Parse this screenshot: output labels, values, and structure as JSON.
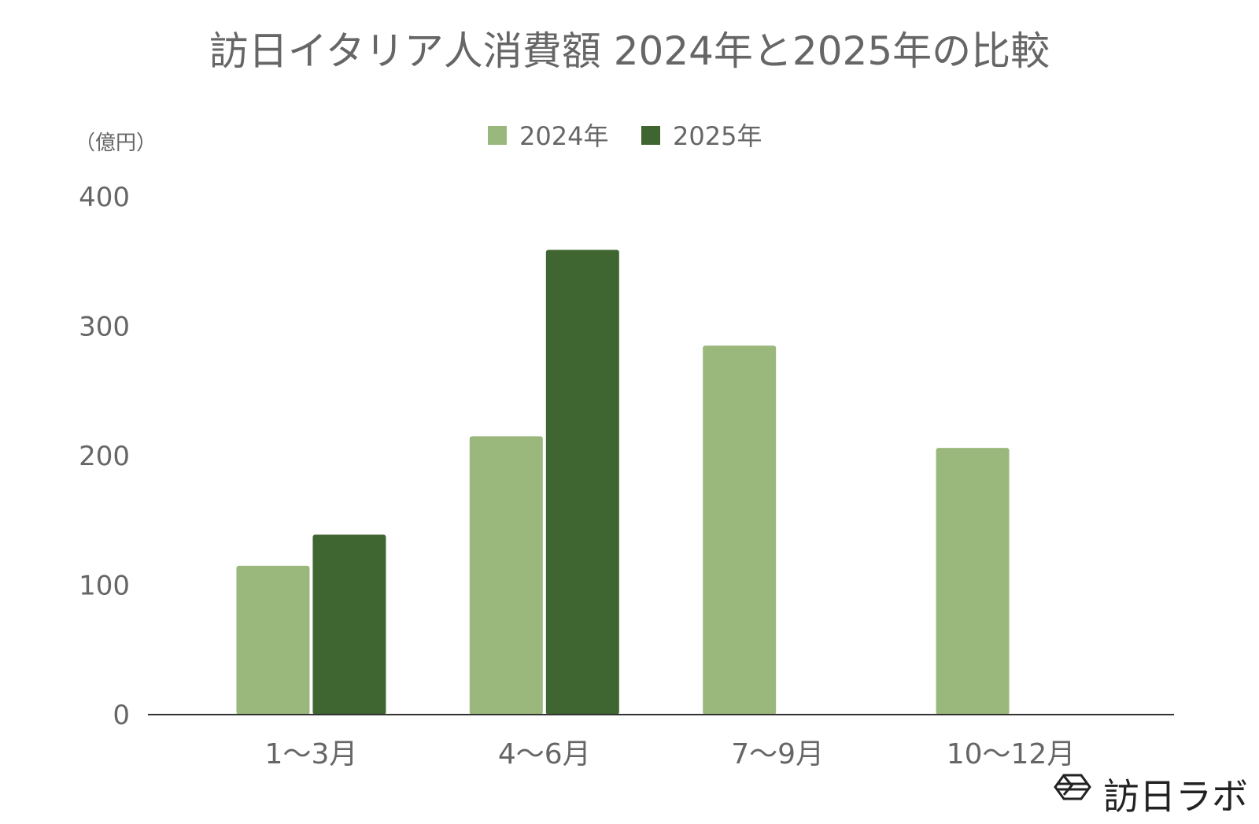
{
  "chart_data": {
    "type": "bar",
    "title": "訪日イタリア人消費額 2024年と2025年の比較",
    "unit_label": "（億円）",
    "categories": [
      "1〜3月",
      "4〜6月",
      "7〜9月",
      "10〜12月"
    ],
    "series": [
      {
        "name": "2024年",
        "color": "#9bb87c",
        "values": [
          115,
          215,
          285,
          206
        ]
      },
      {
        "name": "2025年",
        "color": "#3f6531",
        "values": [
          139,
          359,
          null,
          null
        ]
      }
    ],
    "yticks": [
      "0",
      "100",
      "200",
      "300",
      "400"
    ],
    "ylim": [
      0,
      400
    ],
    "grid": false,
    "legend_position": "top-center"
  },
  "brand": {
    "name": "訪日ラボ",
    "logo_icon": "hexagon-logo-icon"
  },
  "colors": {
    "text": "#666666",
    "axis": "#333333"
  }
}
